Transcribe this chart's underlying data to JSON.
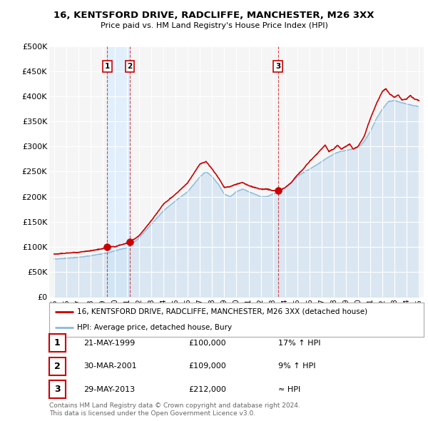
{
  "title": "16, KENTSFORD DRIVE, RADCLIFFE, MANCHESTER, M26 3XX",
  "subtitle": "Price paid vs. HM Land Registry's House Price Index (HPI)",
  "ylim": [
    0,
    500000
  ],
  "yticks": [
    0,
    50000,
    100000,
    150000,
    200000,
    250000,
    300000,
    350000,
    400000,
    450000,
    500000
  ],
  "ytick_labels": [
    "£0",
    "£50K",
    "£100K",
    "£150K",
    "£200K",
    "£250K",
    "£300K",
    "£350K",
    "£400K",
    "£450K",
    "£500K"
  ],
  "background_color": "#ffffff",
  "plot_bg_color": "#f5f5f5",
  "grid_color": "#ffffff",
  "red_line_color": "#cc0000",
  "blue_line_color": "#88bbdd",
  "blue_fill_color": "#c8dff0",
  "shade_color": "#ddeeff",
  "legend1": "16, KENTSFORD DRIVE, RADCLIFFE, MANCHESTER, M26 3XX (detached house)",
  "legend2": "HPI: Average price, detached house, Bury",
  "transactions": [
    {
      "num": 1,
      "date": "21-MAY-1999",
      "price": 100000,
      "rel": "17% ↑ HPI",
      "year": 1999.38
    },
    {
      "num": 2,
      "date": "30-MAR-2001",
      "price": 109000,
      "rel": "9% ↑ HPI",
      "year": 2001.24
    },
    {
      "num": 3,
      "date": "29-MAY-2013",
      "price": 212000,
      "rel": "≈ HPI",
      "year": 2013.41
    }
  ],
  "footnote1": "Contains HM Land Registry data © Crown copyright and database right 2024.",
  "footnote2": "This data is licensed under the Open Government Licence v3.0.",
  "xtick_years": [
    1995,
    1996,
    1997,
    1998,
    1999,
    2000,
    2001,
    2002,
    2003,
    2004,
    2005,
    2006,
    2007,
    2008,
    2009,
    2010,
    2011,
    2012,
    2013,
    2014,
    2015,
    2016,
    2017,
    2018,
    2019,
    2020,
    2021,
    2022,
    2023,
    2024,
    2025
  ],
  "hpi_keypoints": [
    [
      1995.0,
      75000
    ],
    [
      1996.0,
      77000
    ],
    [
      1997.0,
      79000
    ],
    [
      1998.0,
      82000
    ],
    [
      1999.0,
      86000
    ],
    [
      1999.5,
      88000
    ],
    [
      2000.0,
      92000
    ],
    [
      2001.0,
      98000
    ],
    [
      2002.0,
      118000
    ],
    [
      2003.0,
      145000
    ],
    [
      2004.0,
      172000
    ],
    [
      2005.0,
      192000
    ],
    [
      2006.0,
      210000
    ],
    [
      2007.0,
      240000
    ],
    [
      2007.5,
      250000
    ],
    [
      2008.0,
      240000
    ],
    [
      2008.5,
      225000
    ],
    [
      2009.0,
      205000
    ],
    [
      2009.5,
      200000
    ],
    [
      2010.0,
      210000
    ],
    [
      2010.5,
      215000
    ],
    [
      2011.0,
      210000
    ],
    [
      2011.5,
      205000
    ],
    [
      2012.0,
      200000
    ],
    [
      2012.5,
      200000
    ],
    [
      2013.0,
      205000
    ],
    [
      2013.5,
      210000
    ],
    [
      2014.0,
      218000
    ],
    [
      2014.5,
      228000
    ],
    [
      2015.0,
      240000
    ],
    [
      2015.5,
      248000
    ],
    [
      2016.0,
      255000
    ],
    [
      2016.5,
      262000
    ],
    [
      2017.0,
      270000
    ],
    [
      2017.5,
      278000
    ],
    [
      2018.0,
      285000
    ],
    [
      2018.5,
      290000
    ],
    [
      2019.0,
      292000
    ],
    [
      2019.5,
      295000
    ],
    [
      2020.0,
      298000
    ],
    [
      2020.5,
      310000
    ],
    [
      2021.0,
      330000
    ],
    [
      2021.5,
      355000
    ],
    [
      2022.0,
      375000
    ],
    [
      2022.5,
      390000
    ],
    [
      2023.0,
      392000
    ],
    [
      2023.5,
      388000
    ],
    [
      2024.0,
      385000
    ],
    [
      2024.5,
      382000
    ],
    [
      2025.0,
      380000
    ]
  ],
  "red_keypoints": [
    [
      1995.0,
      85000
    ],
    [
      1996.0,
      87000
    ],
    [
      1997.0,
      89000
    ],
    [
      1998.0,
      92000
    ],
    [
      1999.0,
      96000
    ],
    [
      1999.38,
      100000
    ],
    [
      2000.0,
      100000
    ],
    [
      2001.0,
      107000
    ],
    [
      2001.24,
      109000
    ],
    [
      2002.0,
      122000
    ],
    [
      2003.0,
      152000
    ],
    [
      2004.0,
      185000
    ],
    [
      2005.0,
      205000
    ],
    [
      2006.0,
      228000
    ],
    [
      2007.0,
      265000
    ],
    [
      2007.5,
      270000
    ],
    [
      2008.0,
      255000
    ],
    [
      2008.5,
      238000
    ],
    [
      2009.0,
      218000
    ],
    [
      2009.5,
      220000
    ],
    [
      2010.0,
      225000
    ],
    [
      2010.5,
      228000
    ],
    [
      2011.0,
      222000
    ],
    [
      2011.5,
      218000
    ],
    [
      2012.0,
      215000
    ],
    [
      2012.5,
      215000
    ],
    [
      2013.0,
      212000
    ],
    [
      2013.41,
      212000
    ],
    [
      2014.0,
      218000
    ],
    [
      2014.5,
      228000
    ],
    [
      2015.0,
      243000
    ],
    [
      2015.5,
      255000
    ],
    [
      2016.0,
      270000
    ],
    [
      2016.5,
      282000
    ],
    [
      2017.0,
      295000
    ],
    [
      2017.3,
      303000
    ],
    [
      2017.6,
      290000
    ],
    [
      2018.0,
      295000
    ],
    [
      2018.3,
      303000
    ],
    [
      2018.6,
      295000
    ],
    [
      2019.0,
      300000
    ],
    [
      2019.3,
      305000
    ],
    [
      2019.6,
      295000
    ],
    [
      2020.0,
      300000
    ],
    [
      2020.5,
      320000
    ],
    [
      2021.0,
      355000
    ],
    [
      2021.5,
      385000
    ],
    [
      2022.0,
      410000
    ],
    [
      2022.3,
      415000
    ],
    [
      2022.6,
      405000
    ],
    [
      2023.0,
      398000
    ],
    [
      2023.3,
      403000
    ],
    [
      2023.6,
      393000
    ],
    [
      2024.0,
      395000
    ],
    [
      2024.3,
      402000
    ],
    [
      2024.6,
      395000
    ],
    [
      2025.0,
      392000
    ]
  ]
}
